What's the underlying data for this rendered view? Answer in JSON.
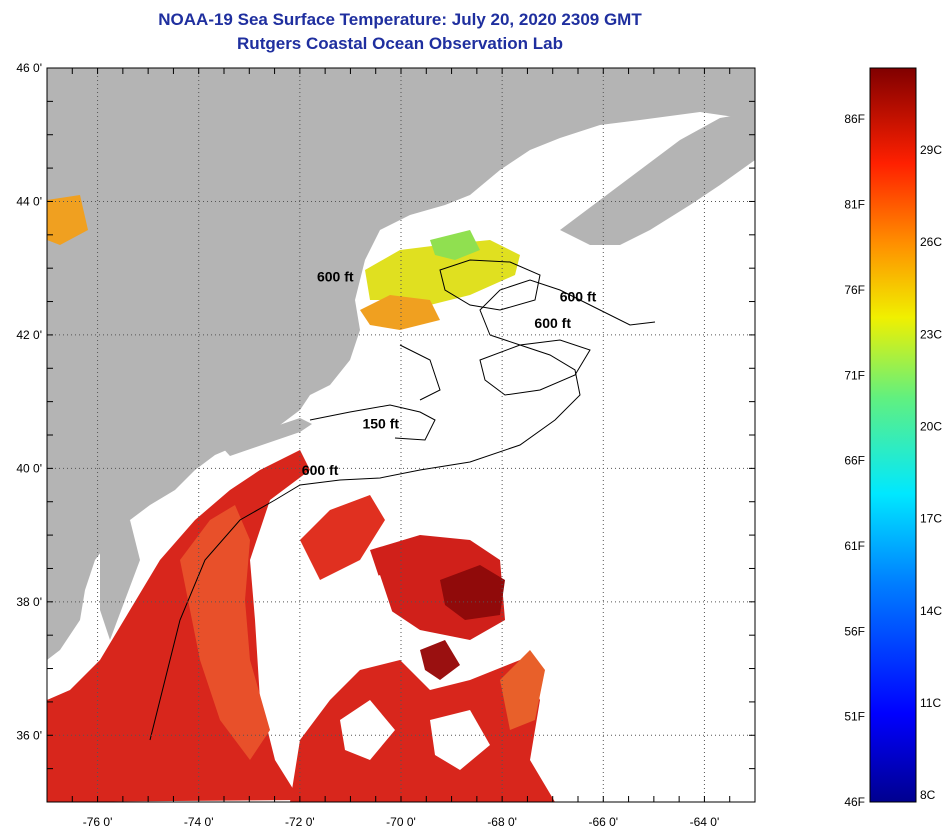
{
  "header": {
    "title": "NOAA-19 Sea Surface Temperature:  July 20, 2020 2309 GMT",
    "subtitle": "Rutgers Coastal Ocean Observation Lab"
  },
  "map": {
    "lon_range": [
      -77,
      -63
    ],
    "lat_range": [
      35,
      46
    ],
    "lon_ticks": [
      {
        "value": -76,
        "label": "-76 0'"
      },
      {
        "value": -74,
        "label": "-74 0'"
      },
      {
        "value": -72,
        "label": "-72 0'"
      },
      {
        "value": -70,
        "label": "-70 0'"
      },
      {
        "value": -68,
        "label": "-68 0'"
      },
      {
        "value": -66,
        "label": "-66 0'"
      },
      {
        "value": -64,
        "label": "-64 0'"
      }
    ],
    "lat_ticks": [
      {
        "value": 46,
        "label": "46 0'"
      },
      {
        "value": 44,
        "label": "44 0'"
      },
      {
        "value": 42,
        "label": "42 0'"
      },
      {
        "value": 40,
        "label": "40 0'"
      },
      {
        "value": 38,
        "label": "38 0'"
      },
      {
        "value": 36,
        "label": "36 0'"
      }
    ],
    "grid": "dotted",
    "contour_labels": [
      {
        "text": "600 ft",
        "lon": -71.3,
        "lat": 42.8
      },
      {
        "text": "600 ft",
        "lon": -66.5,
        "lat": 42.5
      },
      {
        "text": "600 ft",
        "lon": -67.0,
        "lat": 42.1
      },
      {
        "text": "150 ft",
        "lon": -70.4,
        "lat": 40.6
      },
      {
        "text": "600 ft",
        "lon": -71.6,
        "lat": 39.9
      }
    ],
    "colors": {
      "land": "#b4b4b4",
      "cloud": "#ffffff",
      "sst_warm": "#d8261c",
      "sst_hot": "#900a0a",
      "sst_mild": "#f07a24",
      "sst_cool": "#e6e62a"
    }
  },
  "colorbar": {
    "min_f": 46,
    "max_f": 89,
    "f_labels": [
      "86F",
      "81F",
      "76F",
      "71F",
      "66F",
      "61F",
      "56F",
      "51F",
      "46F"
    ],
    "c_labels": [
      "29C",
      "26C",
      "23C",
      "20C",
      "17C",
      "14C",
      "11C",
      "8C"
    ]
  }
}
